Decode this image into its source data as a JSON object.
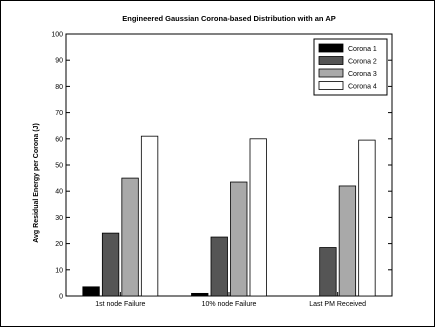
{
  "chart_data": {
    "type": "bar",
    "title": "Engineered Gaussian Corona-based Distribution with an AP",
    "xlabel": "",
    "ylabel": "Avg Residual Energy per Corona (J)",
    "ylim": [
      0,
      100
    ],
    "yticks": [
      0,
      10,
      20,
      30,
      40,
      50,
      60,
      70,
      80,
      90,
      100
    ],
    "grid": false,
    "legend_position": "top-right",
    "categories": [
      "1st node Failure",
      "10% node Failure",
      "Last PM Received"
    ],
    "series": [
      {
        "name": "Corona 1",
        "color": "#000000",
        "values": [
          3.5,
          1.0,
          0
        ]
      },
      {
        "name": "Corona 2",
        "color": "#555555",
        "values": [
          24,
          22.5,
          18.5
        ]
      },
      {
        "name": "Corona 3",
        "color": "#a9a9a9",
        "values": [
          45,
          43.5,
          42
        ]
      },
      {
        "name": "Corona 4",
        "color": "#ffffff",
        "values": [
          61,
          60,
          59.5
        ]
      }
    ]
  }
}
